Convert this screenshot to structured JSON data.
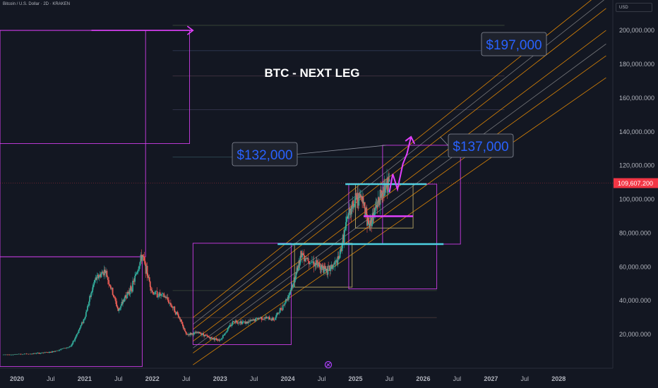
{
  "header": {
    "title": "Bitcoin / U.S. Dollar · 2D · KRAKEN",
    "currency": "USD"
  },
  "colors": {
    "background": "#131722",
    "up": "#26a69a",
    "down": "#ef5350",
    "magenta": "#e040fb",
    "cyan": "#4dd0e1",
    "tan": "#c8b56a",
    "orange": "#ff9800",
    "callout": "#2962ff",
    "price_badge": "#f23645"
  },
  "chart_data": {
    "type": "line",
    "title": "BTC - NEXT LEG",
    "price_axis": {
      "ticks": [
        20000,
        40000,
        60000,
        80000,
        100000,
        120000,
        140000,
        160000,
        180000,
        200000
      ],
      "tick_labels": [
        "20,000.000",
        "40,000.000",
        "60,000.000",
        "80,000.000",
        "100,000.000",
        "120,000.000",
        "140,000.000",
        "160,000.000",
        "180,000.000",
        "200,000.000"
      ],
      "ylim": [
        0,
        218000
      ]
    },
    "time_axis": {
      "ticks": [
        2020.0,
        2020.5,
        2021.0,
        2021.5,
        2022.0,
        2022.5,
        2023.0,
        2023.5,
        2024.0,
        2024.5,
        2025.0,
        2025.5,
        2026.0,
        2026.5,
        2027.0,
        2027.5,
        2028.0
      ],
      "tick_labels": [
        "2020",
        "Jul",
        "2021",
        "Jul",
        "2022",
        "Jul",
        "2023",
        "Jul",
        "2024",
        "Jul",
        "2025",
        "Jul",
        "2026",
        "Jul",
        "2027",
        "Jul",
        "2028"
      ],
      "xlim": [
        2019.75,
        2028.8
      ]
    },
    "current_price": {
      "value": 109607.2,
      "label": "109,607.200"
    },
    "series": [
      {
        "x": [
          2019.8,
          2020.2,
          2020.5,
          2020.8,
          2021.0,
          2021.15,
          2021.3,
          2021.5,
          2021.6,
          2021.7,
          2021.85,
          2022.0,
          2022.2,
          2022.4,
          2022.5,
          2022.7,
          2022.85,
          2023.0,
          2023.2,
          2023.4,
          2023.6,
          2023.8,
          2024.0,
          2024.1,
          2024.2,
          2024.4,
          2024.5,
          2024.6,
          2024.75,
          2024.9,
          2025.0,
          2025.1,
          2025.2,
          2025.3,
          2025.4,
          2025.5
        ],
        "y": [
          8000,
          8500,
          9500,
          13000,
          30000,
          52000,
          58000,
          34000,
          42000,
          48000,
          67000,
          45000,
          42000,
          30000,
          20000,
          21000,
          18000,
          16800,
          28000,
          27000,
          30000,
          29000,
          42000,
          52000,
          68000,
          62000,
          60000,
          58000,
          64000,
          92000,
          100000,
          102000,
          84000,
          95000,
          104000,
          109607
        ]
      }
    ],
    "projection": {
      "x": [
        2025.5,
        2025.55,
        2025.62,
        2025.7,
        2025.76,
        2025.82
      ],
      "y": [
        104000,
        115000,
        106000,
        121000,
        127000,
        137000
      ]
    },
    "levels": [
      {
        "name": "cyan-upper",
        "value": 109000,
        "x": [
          2024.85,
          2026.05
        ]
      },
      {
        "name": "cyan-lower",
        "value": 73500,
        "x": [
          2023.85,
          2026.3
        ]
      },
      {
        "name": "magenta-mid",
        "value": 90000,
        "x": [
          2025.12,
          2025.85
        ]
      },
      {
        "name": "magenta-top",
        "value": 200000,
        "x": [
          2021.1,
          2022.6
        ]
      }
    ],
    "boxes": [
      {
        "x": [
          2019.75,
          2022.55
        ],
        "y": [
          133000,
          200000
        ],
        "color": "magenta"
      },
      {
        "x": [
          2019.75,
          2021.9
        ],
        "y": [
          66000,
          200000
        ],
        "color": "magenta"
      },
      {
        "x": [
          2019.75,
          2021.85
        ],
        "y": [
          1000,
          66000
        ],
        "color": "magenta"
      },
      {
        "x": [
          2022.6,
          2024.05
        ],
        "y": [
          14000,
          74000
        ],
        "color": "magenta"
      },
      {
        "x": [
          2024.1,
          2024.95
        ],
        "y": [
          48000,
          74000
        ],
        "color": "tan"
      },
      {
        "x": [
          2024.9,
          2026.2
        ],
        "y": [
          47000,
          109000
        ],
        "color": "magenta"
      },
      {
        "x": [
          2025.0,
          2025.85
        ],
        "y": [
          83000,
          109000
        ],
        "color": "tan"
      },
      {
        "x": [
          2025.4,
          2026.55
        ],
        "y": [
          73500,
          132000
        ],
        "color": "magenta"
      }
    ],
    "channel": {
      "x": [
        2022.6,
        2028.7
      ],
      "orange_lines": [
        {
          "y": [
            9000,
            185000
          ]
        },
        {
          "y": [
            16000,
            200000
          ]
        },
        {
          "y": [
            23000,
            213000
          ]
        },
        {
          "y": [
            30000,
            225000
          ]
        },
        {
          "y": [
            2000,
            172000
          ]
        }
      ],
      "gray_lines": [
        {
          "y": [
            12000,
            192000
          ]
        },
        {
          "y": [
            26000,
            219000
          ]
        }
      ]
    },
    "gridlines": [
      {
        "value": 203000,
        "x": [
          2022.3,
          2027.2
        ]
      },
      {
        "value": 188000,
        "x": [
          2022.3,
          2027.2
        ]
      },
      {
        "value": 173000,
        "x": [
          2022.3,
          2027.2
        ]
      },
      {
        "value": 153000,
        "x": [
          2022.3,
          2027.2
        ]
      },
      {
        "value": 125000,
        "x": [
          2022.3,
          2027.2
        ]
      },
      {
        "value": 46000,
        "x": [
          2022.3,
          2026.2
        ]
      },
      {
        "value": 30000,
        "x": [
          2022.3,
          2026.2
        ]
      }
    ],
    "annotations": [
      {
        "text": "$197,000",
        "value": 197000,
        "target_x": 2026.9
      },
      {
        "text": "$132,000",
        "value": 132000,
        "target_x": 2025.45
      },
      {
        "text": "$137,000",
        "value": 137000,
        "target_x": 2026.25
      }
    ]
  }
}
